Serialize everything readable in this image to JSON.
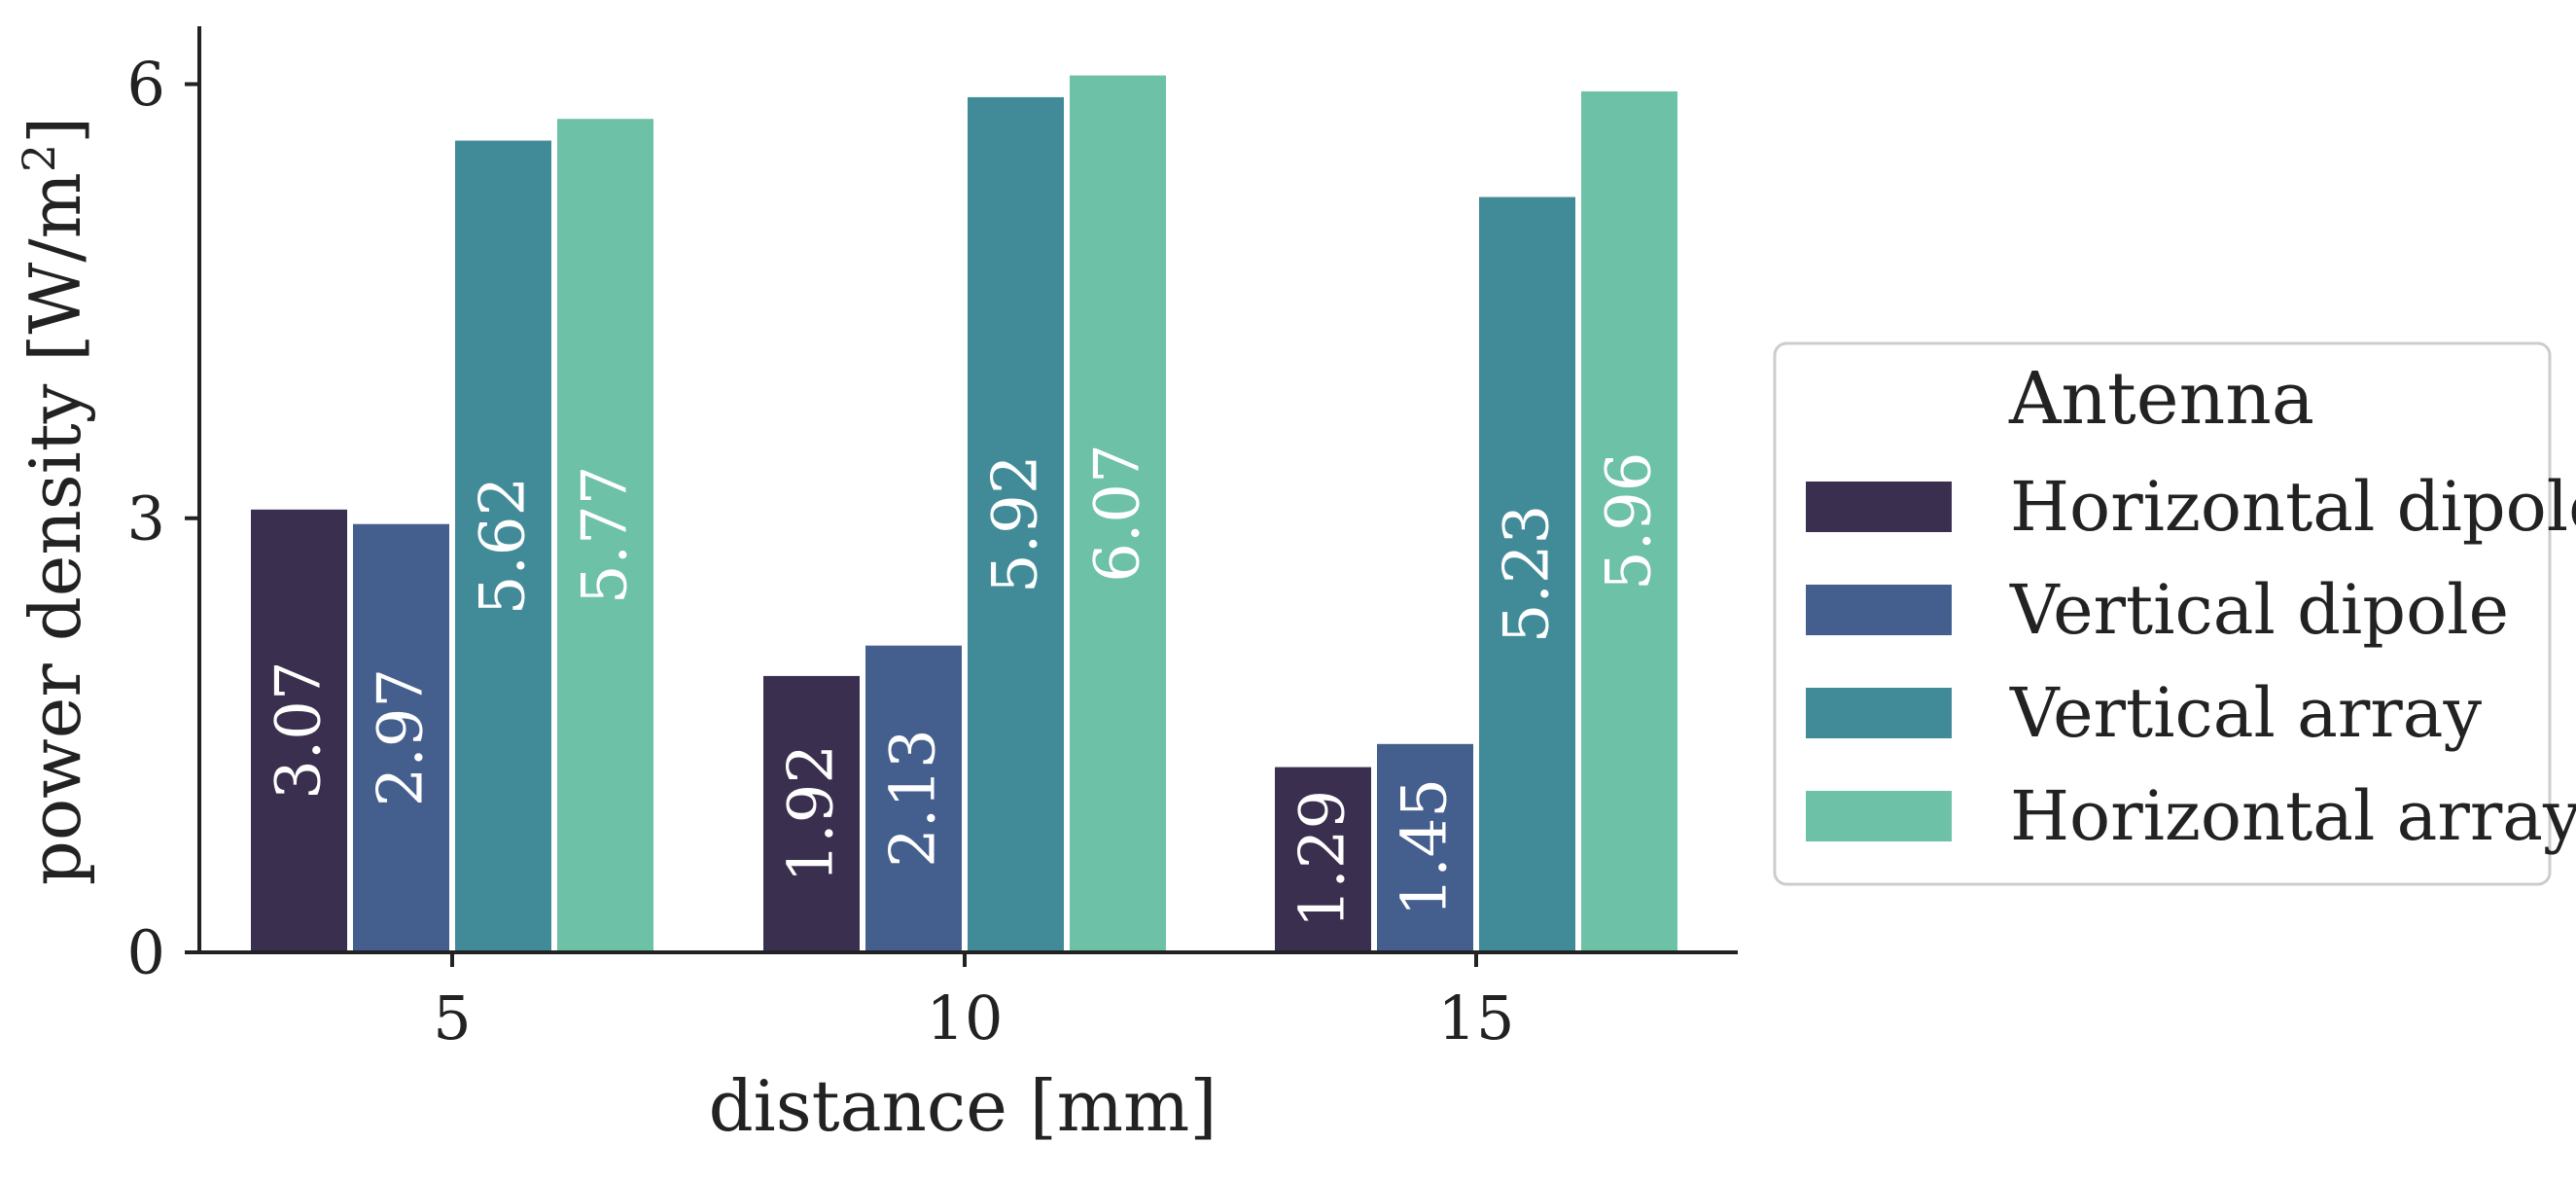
{
  "chart_data": {
    "type": "bar",
    "xlabel": "distance [mm]",
    "ylabel": "power density [W/m",
    "ylabel_superscript": "2",
    "ylabel_suffix": "]",
    "categories": [
      "5",
      "10",
      "15"
    ],
    "yticks": [
      "0",
      "3",
      "6"
    ],
    "ylim": [
      0,
      6.4
    ],
    "legend": {
      "title": "Antenna",
      "placement": "right"
    },
    "series": [
      {
        "name": "Horizontal dipole",
        "color": "#3a2f4f",
        "values": [
          3.07,
          1.92,
          1.29
        ],
        "labels": [
          "3.07",
          "1.92",
          "1.29"
        ]
      },
      {
        "name": "Vertical dipole",
        "color": "#445e8e",
        "values": [
          2.97,
          2.13,
          1.45
        ],
        "labels": [
          "2.97",
          "2.13",
          "1.45"
        ]
      },
      {
        "name": "Vertical array",
        "color": "#418b98",
        "values": [
          5.62,
          5.92,
          5.23
        ],
        "labels": [
          "5.62",
          "5.92",
          "5.23"
        ]
      },
      {
        "name": "Horizontal array",
        "color": "#6dc1a7",
        "values": [
          5.77,
          6.07,
          5.96
        ],
        "labels": [
          "5.77",
          "6.07",
          "5.96"
        ]
      }
    ]
  }
}
